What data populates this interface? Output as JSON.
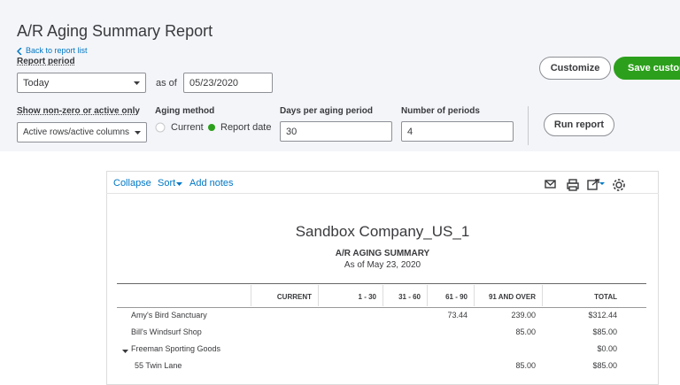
{
  "header": {
    "title": "A/R Aging Summary Report",
    "back_link": "Back to report list"
  },
  "filters": {
    "report_period_label": "Report period",
    "report_period": "Today",
    "as_of_label": "as of",
    "as_of": "05/23/2020",
    "show_label": "Show non-zero or active only",
    "show_value": "Active rows/active columns",
    "aging_method_label": "Aging method",
    "aging_options": [
      "Current",
      "Report date"
    ],
    "days_label": "Days per aging period",
    "days": "30",
    "periods_label": "Number of periods",
    "periods": "4"
  },
  "buttons": {
    "customize": "Customize",
    "save": "Save custom",
    "run": "Run report"
  },
  "toolbar": {
    "collapse": "Collapse",
    "sort": "Sort",
    "add_notes": "Add notes"
  },
  "report": {
    "company": "Sandbox Company_US_1",
    "title": "A/R AGING SUMMARY",
    "date": "As of May 23, 2020"
  },
  "table": {
    "columns": {
      "current": "CURRENT",
      "d1_30": "1 - 30",
      "d31_60": "31 - 60",
      "d61_90": "61 - 90",
      "d91_over": "91 AND OVER",
      "total": "TOTAL"
    },
    "rows": [
      {
        "name": "Amy's Bird Sanctuary",
        "d61_90": "73.44",
        "d91_over": "239.00",
        "total": "$312.44"
      },
      {
        "name": "Bill's Windsurf Shop",
        "d91_over": "85.00",
        "total": "$85.00"
      },
      {
        "name": "Freeman Sporting Goods",
        "total": "$0.00",
        "expanded": true
      },
      {
        "name": "55 Twin Lane",
        "d91_over": "85.00",
        "total": "$85.00",
        "indent": true
      }
    ]
  }
}
